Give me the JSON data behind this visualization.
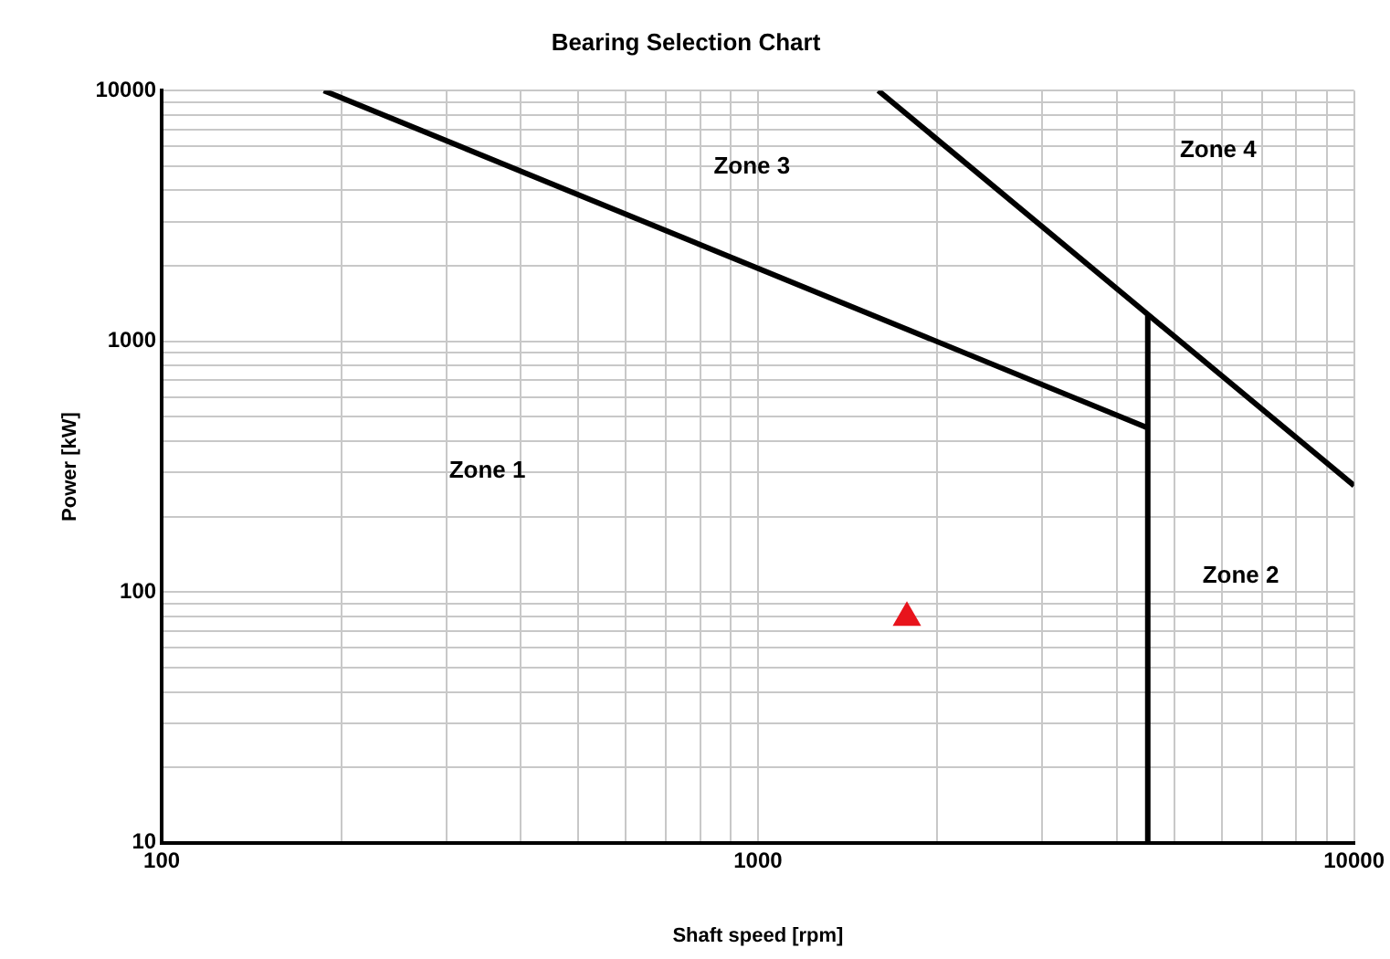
{
  "chart_data": {
    "type": "line",
    "title": "Bearing Selection Chart",
    "xlabel": "Shaft speed [rpm]",
    "ylabel": "Power [kW]",
    "log": "xy",
    "grid": true,
    "legend": false,
    "xlim": [
      100,
      10000
    ],
    "ylim": [
      10,
      10000
    ],
    "xticks": [
      100,
      {
        "value": 200,
        "label": null
      },
      {
        "value": 300,
        "label": null
      },
      {
        "value": 400,
        "label": null
      },
      {
        "value": 500,
        "label": null
      },
      {
        "value": 600,
        "label": null
      },
      {
        "value": 700,
        "label": null
      },
      {
        "value": 800,
        "label": null
      },
      {
        "value": 900,
        "label": null
      },
      1000,
      {
        "value": 2000,
        "label": null
      },
      {
        "value": 3000,
        "label": null
      },
      {
        "value": 4000,
        "label": null
      },
      {
        "value": 5000,
        "label": null
      },
      {
        "value": 6000,
        "label": null
      },
      {
        "value": 7000,
        "label": null
      },
      {
        "value": 8000,
        "label": null
      },
      {
        "value": 9000,
        "label": null
      },
      10000
    ],
    "yticks": [
      10,
      {
        "value": 20,
        "label": null
      },
      {
        "value": 30,
        "label": null
      },
      {
        "value": 40,
        "label": null
      },
      {
        "value": 50,
        "label": null
      },
      {
        "value": 60,
        "label": null
      },
      {
        "value": 70,
        "label": null
      },
      {
        "value": 80,
        "label": null
      },
      {
        "value": 90,
        "label": null
      },
      100,
      {
        "value": 200,
        "label": null
      },
      {
        "value": 300,
        "label": null
      },
      {
        "value": 400,
        "label": null
      },
      {
        "value": 500,
        "label": null
      },
      {
        "value": 600,
        "label": null
      },
      {
        "value": 700,
        "label": null
      },
      {
        "value": 800,
        "label": null
      },
      {
        "value": 900,
        "label": null
      },
      1000,
      {
        "value": 2000,
        "label": null
      },
      {
        "value": 3000,
        "label": null
      },
      {
        "value": 4000,
        "label": null
      },
      {
        "value": 5000,
        "label": null
      },
      {
        "value": 6000,
        "label": null
      },
      {
        "value": 7000,
        "label": null
      },
      {
        "value": 8000,
        "label": null
      },
      {
        "value": 9000,
        "label": null
      },
      10000
    ],
    "series": [
      {
        "color": "#000000",
        "marker": "none",
        "x": [
          187,
          4508
        ],
        "values": [
          10000,
          452
        ]
      },
      {
        "color": "#000000",
        "marker": "none",
        "x": [
          4508,
          4508
        ],
        "values": [
          10,
          1268
        ]
      },
      {
        "color": "#000000",
        "marker": "none",
        "x": [
          1592,
          10000
        ],
        "values": [
          10000,
          266
        ]
      },
      {
        "type": "scatter",
        "color": "#e8141c",
        "marker": "triangle",
        "x": [
          1778
        ],
        "values": [
          79
        ]
      }
    ],
    "annotations": [
      "Zone 1",
      "Zone 3",
      "Zone 4",
      "Zone 2"
    ]
  }
}
